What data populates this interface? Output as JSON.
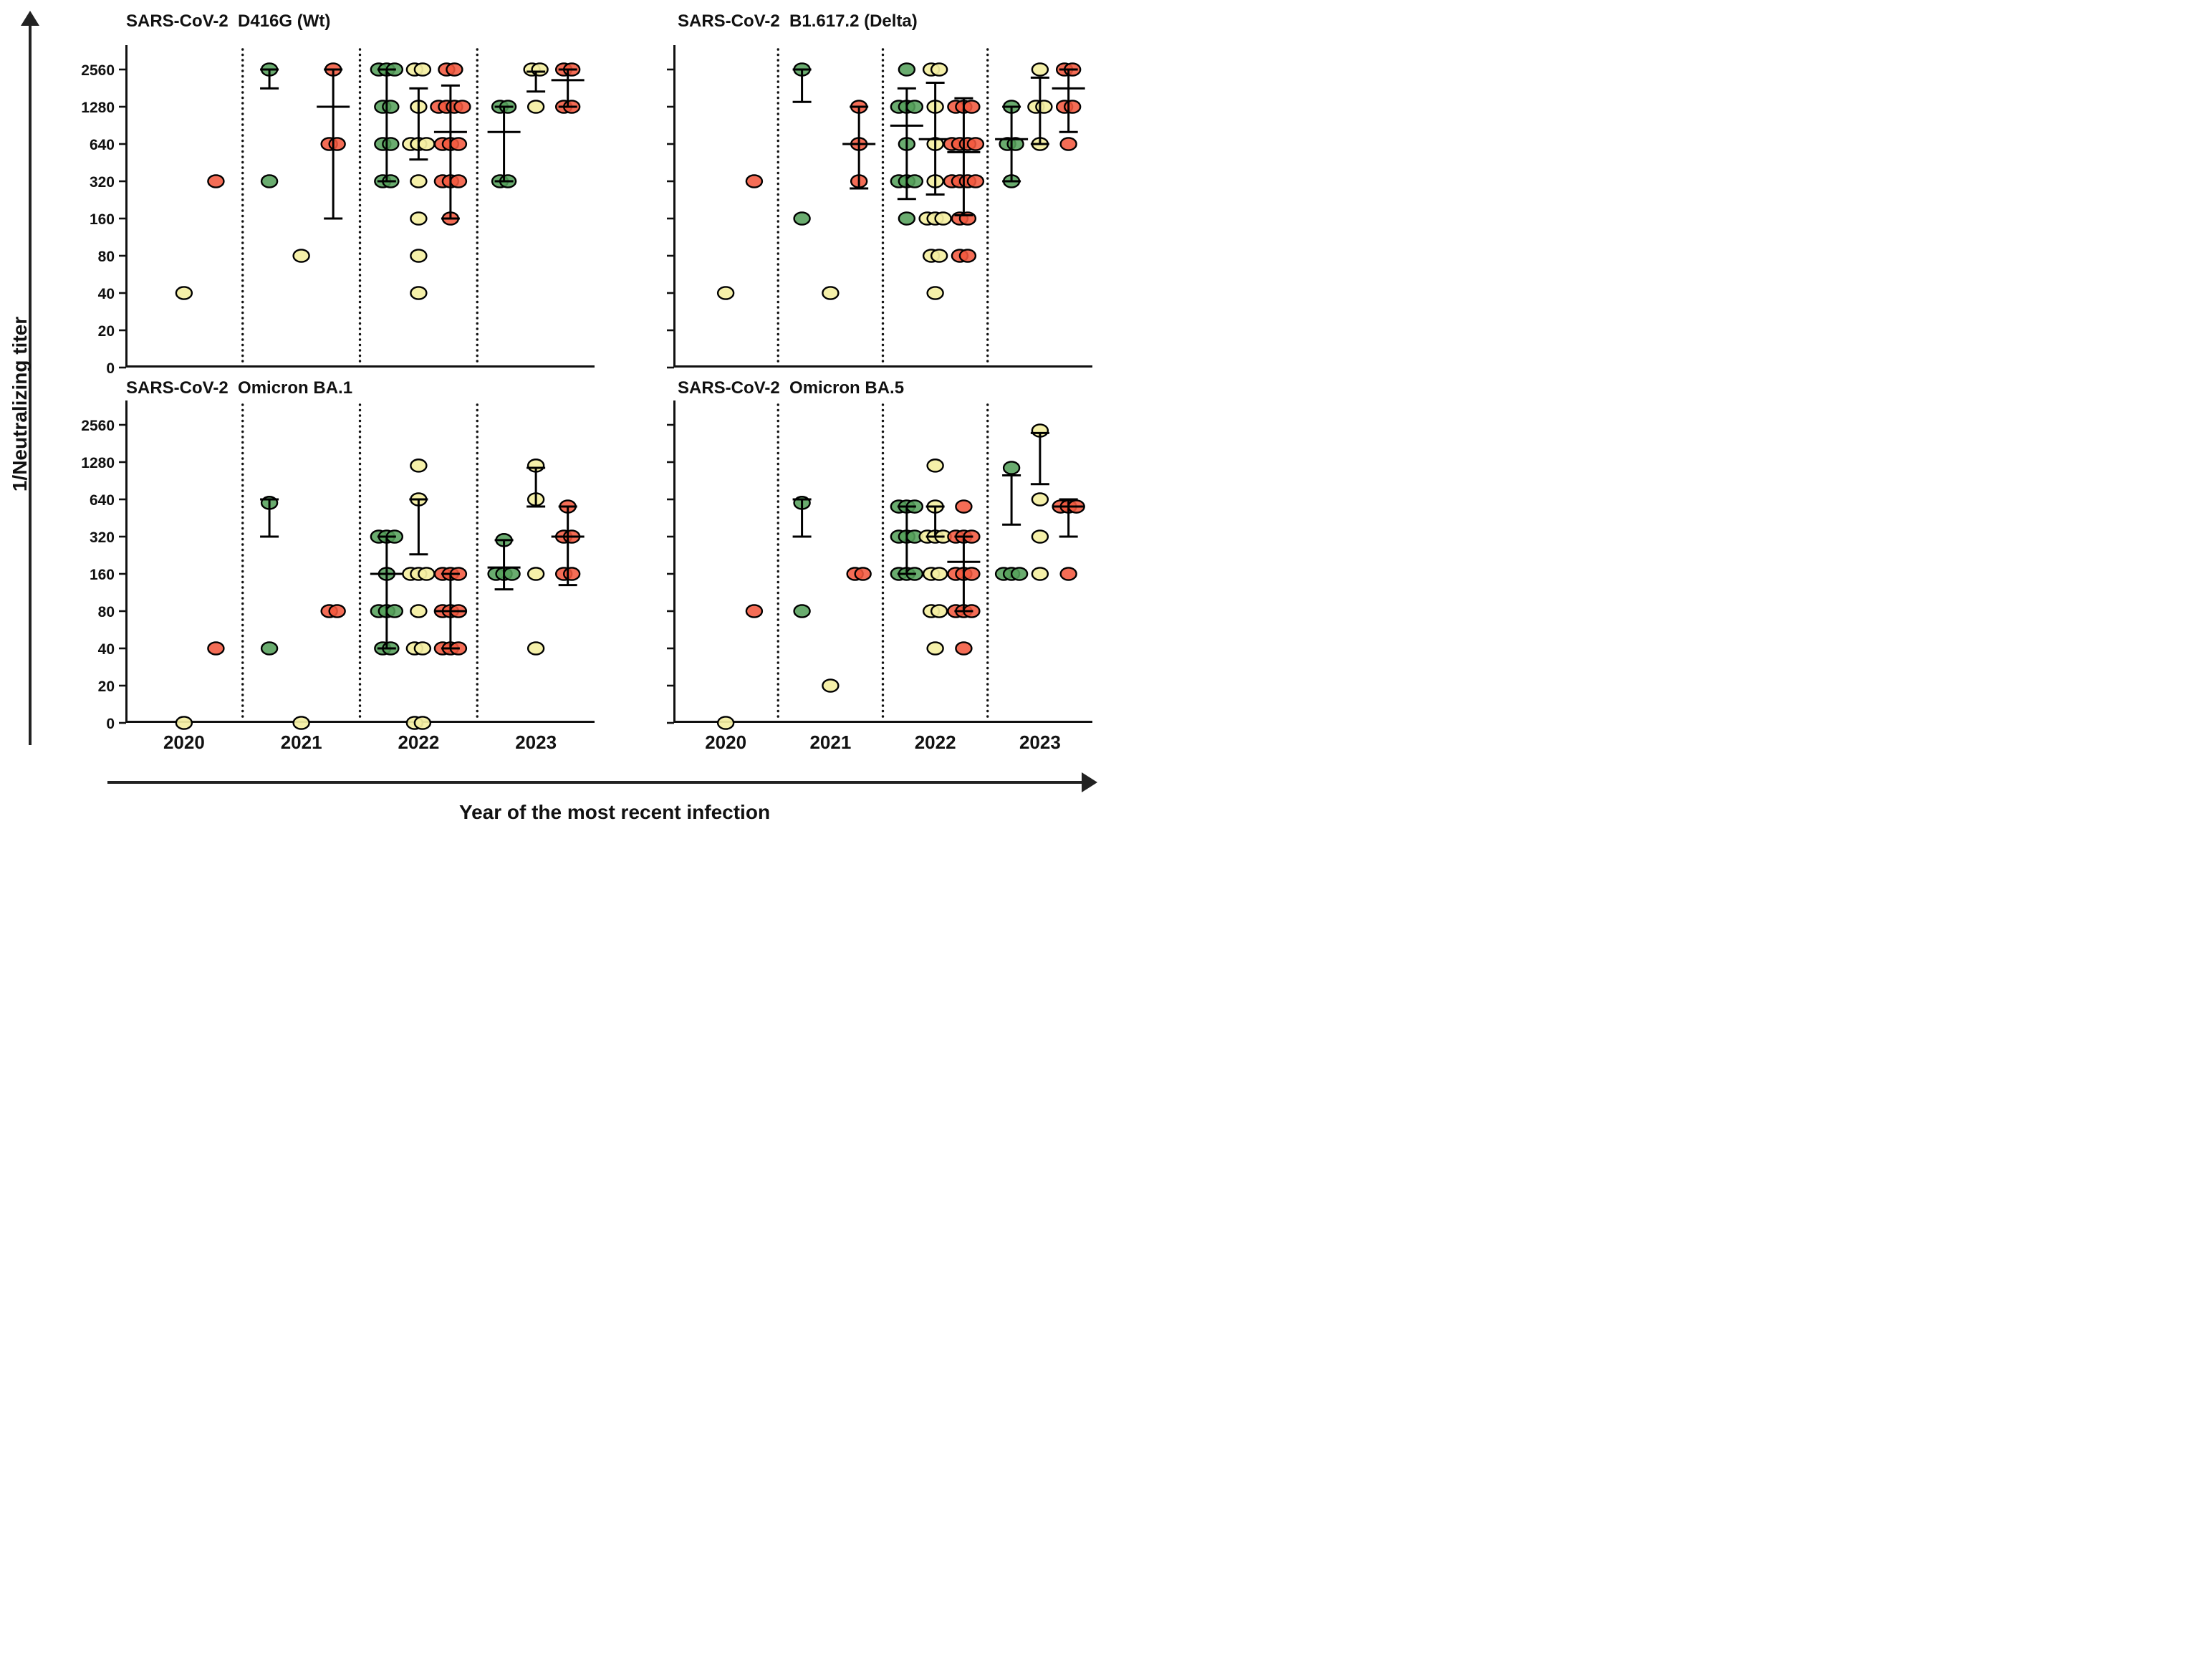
{
  "y_axis": {
    "label": "1/Neutralizing titer",
    "ticks": [
      "0",
      "20",
      "40",
      "80",
      "160",
      "320",
      "640",
      "1280",
      "2560"
    ]
  },
  "x_axis": {
    "label": "Year of the most recent infection",
    "years": [
      "2020",
      "2021",
      "2022",
      "2023"
    ]
  },
  "colors": {
    "green": "#55a05b",
    "yellow": "#f4efa3",
    "red": "#f2593f",
    "axis": "#111111"
  },
  "chart_data": [
    {
      "type": "scatter",
      "title": "SARS-CoV-2  D416G (Wt)",
      "ylabel": "1/Neutralizing titer",
      "ylim": [
        0,
        2560
      ],
      "groups": [
        {
          "year": "2020",
          "series": {
            "green": {
              "points": []
            },
            "yellow": {
              "points": [
                40
              ]
            },
            "red": {
              "points": [
                320
              ]
            }
          }
        },
        {
          "year": "2021",
          "series": {
            "green": {
              "points": [
                2560,
                320
              ],
              "err": [
                1800,
                null,
                2560
              ]
            },
            "yellow": {
              "points": [
                80
              ]
            },
            "red": {
              "points": [
                2560,
                640,
                640
              ],
              "err": [
                160,
                1280,
                2560
              ]
            }
          }
        },
        {
          "year": "2022",
          "series": {
            "green": {
              "points": [
                2560,
                2560,
                2560,
                1280,
                1280,
                640,
                640,
                320,
                320
              ],
              "err": [
                320,
                null,
                2560
              ]
            },
            "yellow": {
              "points": [
                2560,
                2560,
                1280,
                640,
                640,
                640,
                320,
                160,
                80,
                40
              ],
              "err": [
                480,
                null,
                1800
              ]
            },
            "red": {
              "points": [
                2560,
                2560,
                1280,
                1280,
                1280,
                1280,
                640,
                640,
                640,
                320,
                320,
                320,
                160
              ],
              "err": [
                160,
                800,
                1900
              ]
            }
          }
        },
        {
          "year": "2023",
          "series": {
            "green": {
              "points": [
                1280,
                1280,
                320,
                320
              ],
              "err": [
                320,
                800,
                1280
              ]
            },
            "yellow": {
              "points": [
                2560,
                2560,
                1280
              ],
              "err": [
                1700,
                null,
                2460
              ]
            },
            "red": {
              "points": [
                2560,
                2560,
                1280,
                1280
              ],
              "err": [
                1280,
                2100,
                2560
              ]
            }
          }
        }
      ]
    },
    {
      "type": "scatter",
      "title": "SARS-CoV-2  B1.617.2 (Delta)",
      "ylabel": "1/Neutralizing titer",
      "ylim": [
        0,
        2560
      ],
      "groups": [
        {
          "year": "2020",
          "series": {
            "green": {
              "points": []
            },
            "yellow": {
              "points": [
                40
              ]
            },
            "red": {
              "points": [
                320
              ]
            }
          }
        },
        {
          "year": "2021",
          "series": {
            "green": {
              "points": [
                2560,
                160
              ],
              "err": [
                1400,
                null,
                2560
              ]
            },
            "yellow": {
              "points": [
                40
              ]
            },
            "red": {
              "points": [
                1280,
                640,
                320
              ],
              "err": [
                280,
                640,
                1280
              ]
            }
          }
        },
        {
          "year": "2022",
          "series": {
            "green": {
              "points": [
                2560,
                1280,
                1280,
                1280,
                640,
                320,
                320,
                320,
                160
              ],
              "err": [
                230,
                900,
                1800
              ]
            },
            "yellow": {
              "points": [
                2560,
                2560,
                1280,
                640,
                320,
                160,
                160,
                160,
                80,
                80,
                40
              ],
              "err": [
                250,
                700,
                2000
              ]
            },
            "red": {
              "points": [
                1280,
                1280,
                1280,
                640,
                640,
                640,
                640,
                320,
                320,
                320,
                320,
                160,
                160,
                80,
                80
              ],
              "err": [
                170,
                550,
                1500
              ]
            }
          }
        },
        {
          "year": "2023",
          "series": {
            "green": {
              "points": [
                1280,
                640,
                640,
                320
              ],
              "err": [
                320,
                700,
                1280
              ]
            },
            "yellow": {
              "points": [
                2560,
                1280,
                1280,
                640
              ],
              "err": [
                640,
                null,
                2200
              ]
            },
            "red": {
              "points": [
                2560,
                2560,
                1280,
                1280,
                640
              ],
              "err": [
                800,
                1800,
                2560
              ]
            }
          }
        }
      ]
    },
    {
      "type": "scatter",
      "title": "SARS-CoV-2  Omicron BA.1",
      "ylabel": "1/Neutralizing titer",
      "ylim": [
        0,
        2560
      ],
      "groups": [
        {
          "year": "2020",
          "series": {
            "green": {
              "points": []
            },
            "yellow": {
              "points": [
                0
              ]
            },
            "red": {
              "points": [
                40
              ]
            }
          }
        },
        {
          "year": "2021",
          "series": {
            "green": {
              "points": [
                600,
                40
              ],
              "err": [
                320,
                null,
                640
              ]
            },
            "yellow": {
              "points": [
                0
              ]
            },
            "red": {
              "points": [
                80,
                80
              ]
            }
          }
        },
        {
          "year": "2022",
          "series": {
            "green": {
              "points": [
                320,
                320,
                320,
                160,
                80,
                80,
                80,
                40,
                40
              ],
              "err": [
                40,
                160,
                320
              ]
            },
            "yellow": {
              "points": [
                1200,
                640,
                160,
                160,
                160,
                80,
                40,
                40,
                0,
                0
              ],
              "err": [
                230,
                null,
                640
              ]
            },
            "red": {
              "points": [
                160,
                160,
                160,
                80,
                80,
                80,
                40,
                40,
                40
              ],
              "err": [
                40,
                80,
                160
              ]
            }
          }
        },
        {
          "year": "2023",
          "series": {
            "green": {
              "points": [
                300,
                160,
                160,
                160
              ],
              "err": [
                120,
                180,
                300
              ]
            },
            "yellow": {
              "points": [
                1200,
                640,
                160,
                40
              ],
              "err": [
                560,
                null,
                1150
              ]
            },
            "red": {
              "points": [
                560,
                320,
                320,
                160,
                160
              ],
              "err": [
                130,
                320,
                560
              ]
            }
          }
        }
      ]
    },
    {
      "type": "scatter",
      "title": "SARS-CoV-2  Omicron BA.5",
      "ylabel": "1/Neutralizing titer",
      "ylim": [
        0,
        2560
      ],
      "groups": [
        {
          "year": "2020",
          "series": {
            "green": {
              "points": []
            },
            "yellow": {
              "points": [
                0
              ]
            },
            "red": {
              "points": [
                80
              ]
            }
          }
        },
        {
          "year": "2021",
          "series": {
            "green": {
              "points": [
                600,
                80
              ],
              "err": [
                320,
                null,
                640
              ]
            },
            "yellow": {
              "points": [
                20
              ]
            },
            "red": {
              "points": [
                160,
                160
              ]
            }
          }
        },
        {
          "year": "2022",
          "series": {
            "green": {
              "points": [
                560,
                560,
                560,
                320,
                320,
                320,
                160,
                160,
                160
              ],
              "err": [
                160,
                null,
                560
              ]
            },
            "yellow": {
              "points": [
                1200,
                560,
                320,
                320,
                320,
                160,
                160,
                80,
                80,
                40
              ],
              "err": [
                320,
                null,
                560
              ]
            },
            "red": {
              "points": [
                560,
                320,
                320,
                320,
                160,
                160,
                160,
                80,
                80,
                80,
                40
              ],
              "err": [
                80,
                200,
                320
              ]
            }
          }
        },
        {
          "year": "2023",
          "series": {
            "green": {
              "points": [
                1150,
                160,
                160,
                160
              ],
              "err": [
                400,
                null,
                1000
              ]
            },
            "yellow": {
              "points": [
                2300,
                640,
                320,
                160
              ],
              "err": [
                850,
                null,
                2200
              ]
            },
            "red": {
              "points": [
                560,
                560,
                560,
                160
              ],
              "err": [
                320,
                560,
                640
              ]
            }
          }
        }
      ]
    }
  ]
}
